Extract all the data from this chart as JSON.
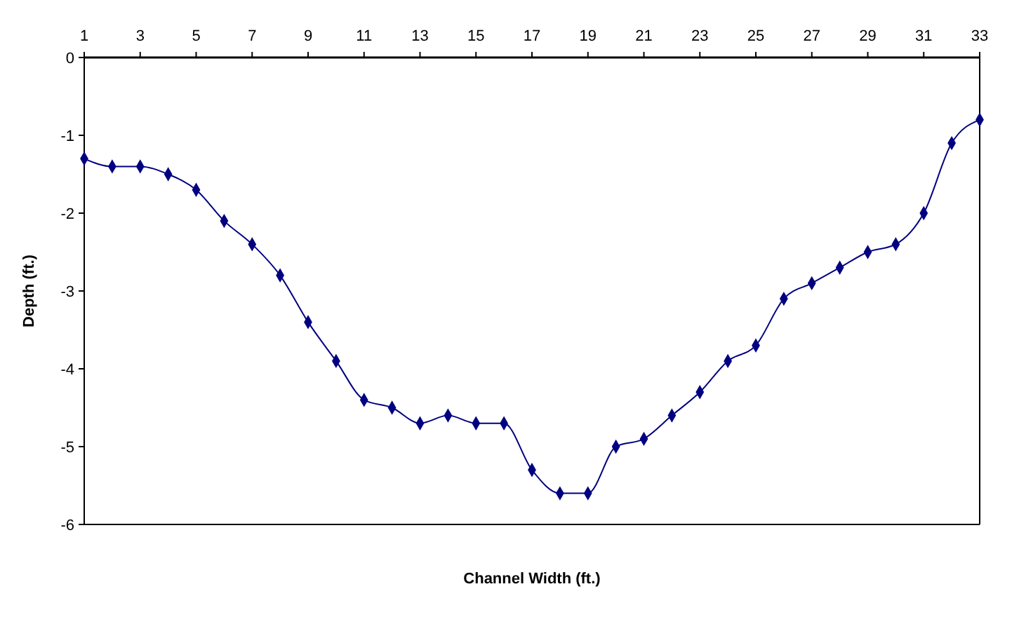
{
  "chart_data": {
    "type": "line",
    "xlabel": "Channel Width (ft.)",
    "ylabel": "Depth (ft.)",
    "x": [
      1,
      2,
      3,
      4,
      5,
      6,
      7,
      8,
      9,
      10,
      11,
      12,
      13,
      14,
      15,
      16,
      17,
      18,
      19,
      20,
      21,
      22,
      23,
      24,
      25,
      26,
      27,
      28,
      29,
      30,
      31,
      32,
      33
    ],
    "series": [
      {
        "color": "#000080",
        "values": [
          -1.3,
          -1.4,
          -1.4,
          -1.5,
          -1.7,
          -2.1,
          -2.4,
          -2.8,
          -3.4,
          -3.9,
          -4.4,
          -4.5,
          -4.7,
          -4.6,
          -4.7,
          -4.7,
          -5.3,
          -5.6,
          -5.6,
          -5.0,
          -4.9,
          -4.6,
          -4.3,
          -3.9,
          -3.7,
          -3.1,
          -2.9,
          -2.7,
          -2.5,
          -2.4,
          -2.0,
          -1.1,
          -0.8
        ]
      }
    ],
    "xlim": [
      1,
      33
    ],
    "xticks": [
      1,
      3,
      5,
      7,
      9,
      11,
      13,
      15,
      17,
      19,
      21,
      23,
      25,
      27,
      29,
      31,
      33
    ],
    "ylim": [
      -6,
      0
    ],
    "yticks": [
      -6,
      -5,
      -4,
      -3,
      -2,
      -1,
      0
    ],
    "grid": false,
    "marker": "diamond",
    "line_style": "solid"
  }
}
